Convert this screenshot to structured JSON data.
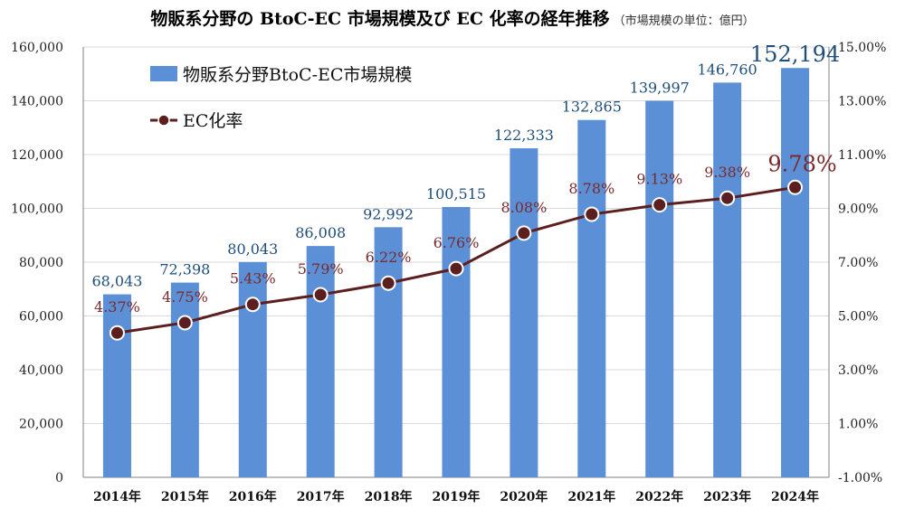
{
  "title": "物販系分野の BtoC-EC 市場規模及び EC 化率の経年推移",
  "subtitle": "（市場規模の単位：億円）",
  "colors": {
    "bar": "#5b8fd6",
    "line": "#5c1f1f",
    "bar_label": "#1f4e79",
    "line_label": "#7a2a2a"
  },
  "chart_data": {
    "type": "bar",
    "categories": [
      "2014年",
      "2015年",
      "2016年",
      "2017年",
      "2018年",
      "2019年",
      "2020年",
      "2021年",
      "2022年",
      "2023年",
      "2024年"
    ],
    "series": [
      {
        "name": "物販系分野BtoC-EC市場規模",
        "type": "bar",
        "axis": "left",
        "values": [
          68043,
          72398,
          80043,
          86008,
          92992,
          100515,
          122333,
          132865,
          139997,
          146760,
          152194
        ],
        "labels": [
          "68,043",
          "72,398",
          "80,043",
          "86,008",
          "92,992",
          "100,515",
          "122,333",
          "132,865",
          "139,997",
          "146,760",
          "152,194"
        ]
      },
      {
        "name": "EC化率",
        "type": "line",
        "axis": "right",
        "values": [
          4.37,
          4.75,
          5.43,
          5.79,
          6.22,
          6.76,
          8.08,
          8.78,
          9.13,
          9.38,
          9.78
        ],
        "labels": [
          "4.37%",
          "4.75%",
          "5.43%",
          "5.79%",
          "6.22%",
          "6.76%",
          "8.08%",
          "8.78%",
          "9.13%",
          "9.38%",
          "9.78%"
        ]
      }
    ],
    "left_axis": {
      "ylim": [
        0,
        160000
      ],
      "ticks": [
        0,
        20000,
        40000,
        60000,
        80000,
        100000,
        120000,
        140000,
        160000
      ],
      "tick_labels": [
        "0",
        "20,000",
        "40,000",
        "60,000",
        "80,000",
        "100,000",
        "120,000",
        "140,000",
        "160,000"
      ]
    },
    "right_axis": {
      "ylim": [
        -1,
        15
      ],
      "ticks": [
        -1,
        1,
        3,
        5,
        7,
        9,
        11,
        13,
        15
      ],
      "tick_labels": [
        "-1.00%",
        "1.00%",
        "3.00%",
        "5.00%",
        "7.00%",
        "9.00%",
        "11.00%",
        "13.00%",
        "15.00%"
      ]
    },
    "grid": true,
    "legend_position": "top-left"
  }
}
